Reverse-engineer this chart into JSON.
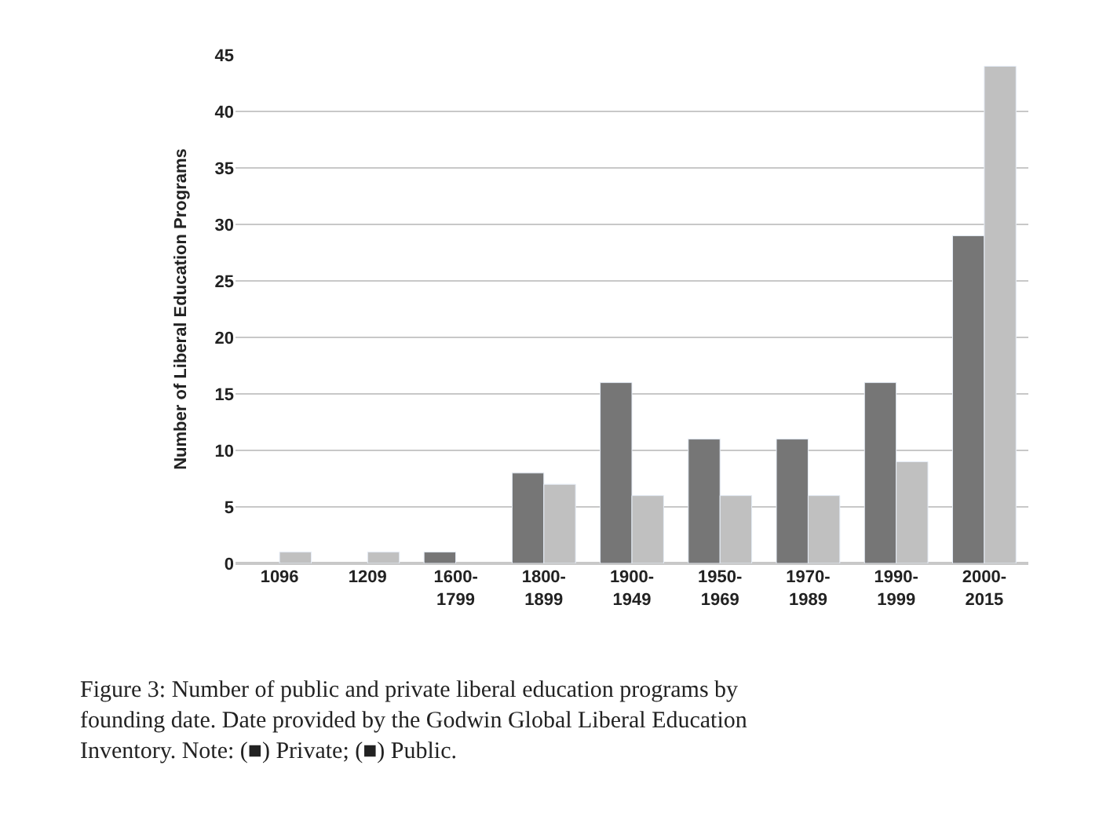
{
  "chart_data": {
    "type": "bar",
    "categories": [
      "1096",
      "1209",
      "1600-\n1799",
      "1800-\n1899",
      "1900-\n1949",
      "1950-\n1969",
      "1970-\n1989",
      "1990-\n1999",
      "2000-\n2015"
    ],
    "series": [
      {
        "color": "#767676",
        "values": [
          null,
          null,
          1,
          8,
          16,
          11,
          11,
          16,
          29
        ]
      },
      {
        "color": "#c0c0c0",
        "values": [
          1,
          1,
          null,
          7,
          6,
          6,
          6,
          9,
          44
        ]
      }
    ],
    "ylabel": "Number of Liberal Education Programs",
    "ylim": [
      0,
      45
    ],
    "yticks": [
      0,
      5,
      10,
      15,
      20,
      25,
      30,
      35,
      40,
      45
    ],
    "grid": "y",
    "annotations": [
      "Figure 3: Number of public and private liberal education programs by founding date. Date provided by the Godwin Global Liberal Education Inventory. Note: (■) Private; (■) Public."
    ]
  }
}
